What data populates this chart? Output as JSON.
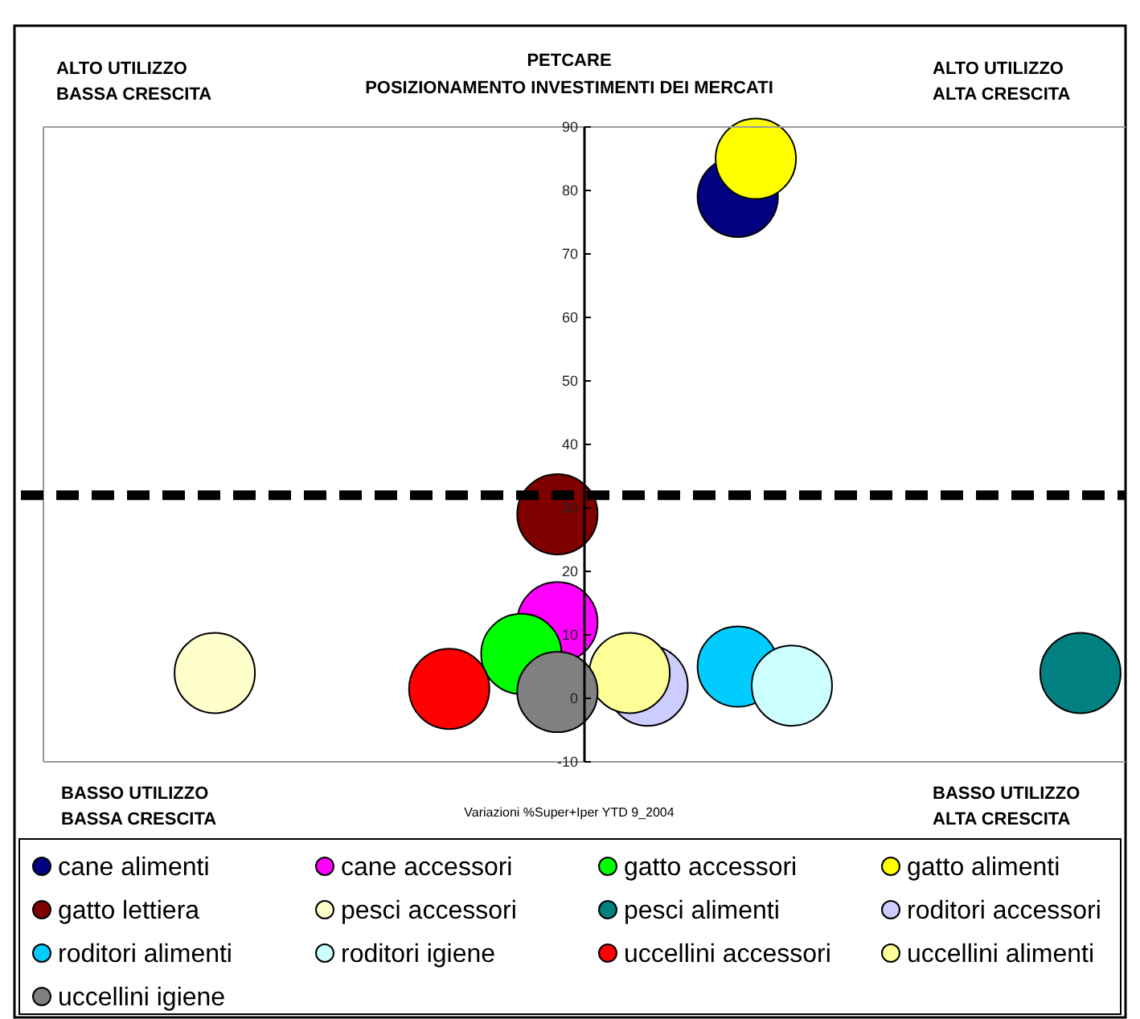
{
  "chart_data": {
    "type": "bubble",
    "title": "PETCARE",
    "subtitle": "POSIZIONAMENTO INVESTIMENTI DEI MERCATI",
    "annotations": [
      "ALTO UTILIZZO\nBASSA CRESCITA",
      "ALTO UTILIZZO\nALTA CRESCITA",
      "BASSO UTILIZZO\nBASSA CRESCITA",
      "BASSO UTILIZZO\nALTA CRESCITA",
      "Variazioni %Super+Iper YTD 9_2004"
    ],
    "categories": [
      null,
      null,
      null,
      null,
      null,
      null,
      null,
      null,
      null,
      null,
      null,
      null,
      null,
      null,
      null,
      null,
      null,
      null,
      null,
      null,
      null,
      null,
      null,
      null,
      null,
      null,
      null,
      null,
      null,
      null,
      null,
      null,
      null,
      null,
      null,
      null,
      null,
      null,
      null,
      null,
      null,
      null,
      null,
      null,
      null,
      null,
      null,
      null,
      null,
      null,
      null,
      null,
      null,
      null,
      null,
      null,
      null,
      null,
      null,
      null
    ],
    "ylim": [
      -10,
      90
    ],
    "yticks": [
      -10,
      0,
      10,
      20,
      30,
      40,
      50,
      60,
      70,
      80,
      90
    ],
    "tick_labels": "y",
    "legend": "bottom",
    "ref_lines": [
      {
        "axis": "y",
        "value": 32,
        "color": "#000000",
        "line_style": "dashed"
      }
    ],
    "series": [
      {
        "name": "cane alimenti",
        "color": "#000080",
        "values": [
          null,
          null,
          null,
          null,
          null,
          null,
          null,
          null,
          null,
          null,
          null,
          null,
          null,
          null,
          null,
          null,
          null,
          null,
          null,
          null,
          null,
          null,
          null,
          null,
          null,
          null,
          null,
          null,
          null,
          null,
          null,
          null,
          null,
          null,
          null,
          null,
          null,
          null,
          79,
          null,
          null,
          null,
          null,
          null,
          null,
          null,
          null,
          null,
          null,
          null,
          null,
          null,
          null,
          null,
          null,
          null,
          null,
          null,
          null,
          null
        ],
        "sizes": [
          null,
          null,
          null,
          null,
          null,
          null,
          null,
          null,
          null,
          null,
          null,
          null,
          null,
          null,
          null,
          null,
          null,
          null,
          null,
          null,
          null,
          null,
          null,
          null,
          null,
          null,
          null,
          null,
          null,
          null,
          null,
          null,
          null,
          null,
          null,
          null,
          null,
          null,
          1,
          null,
          null,
          null,
          null,
          null,
          null,
          null,
          null,
          null,
          null,
          null,
          null,
          null,
          null,
          null,
          null,
          null,
          null,
          null,
          null,
          null
        ]
      },
      {
        "name": "cane accessori",
        "color": "#ff00ff",
        "values": [
          null,
          null,
          null,
          null,
          null,
          null,
          null,
          null,
          null,
          null,
          null,
          null,
          null,
          null,
          null,
          null,
          null,
          null,
          null,
          null,
          null,
          null,
          null,
          null,
          null,
          null,
          null,
          null,
          12,
          null,
          null,
          null,
          null,
          null,
          null,
          null,
          null,
          null,
          null,
          null,
          null,
          null,
          null,
          null,
          null,
          null,
          null,
          null,
          null,
          null,
          null,
          null,
          null,
          null,
          null,
          null,
          null,
          null,
          null,
          null
        ],
        "sizes": [
          null,
          null,
          null,
          null,
          null,
          null,
          null,
          null,
          null,
          null,
          null,
          null,
          null,
          null,
          null,
          null,
          null,
          null,
          null,
          null,
          null,
          null,
          null,
          null,
          null,
          null,
          null,
          null,
          1,
          null,
          null,
          null,
          null,
          null,
          null,
          null,
          null,
          null,
          null,
          null,
          null,
          null,
          null,
          null,
          null,
          null,
          null,
          null,
          null,
          null,
          null,
          null,
          null,
          null,
          null,
          null,
          null,
          null,
          null,
          null
        ]
      },
      {
        "name": "gatto accessori",
        "color": "#00ff00",
        "values": [
          null,
          null,
          null,
          null,
          null,
          null,
          null,
          null,
          null,
          null,
          null,
          null,
          null,
          null,
          null,
          null,
          null,
          null,
          null,
          null,
          null,
          null,
          null,
          null,
          null,
          null,
          7,
          null,
          null,
          null,
          null,
          null,
          null,
          null,
          null,
          null,
          null,
          null,
          null,
          null,
          null,
          null,
          null,
          null,
          null,
          null,
          null,
          null,
          null,
          null,
          null,
          null,
          null,
          null,
          null,
          null,
          null,
          null,
          null,
          null
        ],
        "sizes": [
          null,
          null,
          null,
          null,
          null,
          null,
          null,
          null,
          null,
          null,
          null,
          null,
          null,
          null,
          null,
          null,
          null,
          null,
          null,
          null,
          null,
          null,
          null,
          null,
          null,
          null,
          1,
          null,
          null,
          null,
          null,
          null,
          null,
          null,
          null,
          null,
          null,
          null,
          null,
          null,
          null,
          null,
          null,
          null,
          null,
          null,
          null,
          null,
          null,
          null,
          null,
          null,
          null,
          null,
          null,
          null,
          null,
          null,
          null,
          null
        ]
      },
      {
        "name": "gatto alimenti",
        "color": "#ffff00",
        "values": [
          null,
          null,
          null,
          null,
          null,
          null,
          null,
          null,
          null,
          null,
          null,
          null,
          null,
          null,
          null,
          null,
          null,
          null,
          null,
          null,
          null,
          null,
          null,
          null,
          null,
          null,
          null,
          null,
          null,
          null,
          null,
          null,
          null,
          null,
          null,
          null,
          null,
          null,
          null,
          85,
          null,
          null,
          null,
          null,
          null,
          null,
          null,
          null,
          null,
          null,
          null,
          null,
          null,
          null,
          null,
          null,
          null,
          null,
          null,
          null
        ],
        "sizes": [
          null,
          null,
          null,
          null,
          null,
          null,
          null,
          null,
          null,
          null,
          null,
          null,
          null,
          null,
          null,
          null,
          null,
          null,
          null,
          null,
          null,
          null,
          null,
          null,
          null,
          null,
          null,
          null,
          null,
          null,
          null,
          null,
          null,
          null,
          null,
          null,
          null,
          null,
          null,
          1,
          null,
          null,
          null,
          null,
          null,
          null,
          null,
          null,
          null,
          null,
          null,
          null,
          null,
          null,
          null,
          null,
          null,
          null,
          null,
          null
        ]
      },
      {
        "name": "gatto lettiera",
        "color": "#800000",
        "values": [
          null,
          null,
          null,
          null,
          null,
          null,
          null,
          null,
          null,
          null,
          null,
          null,
          null,
          null,
          null,
          null,
          null,
          null,
          null,
          null,
          null,
          null,
          null,
          null,
          null,
          null,
          null,
          null,
          29,
          null,
          null,
          null,
          null,
          null,
          null,
          null,
          null,
          null,
          null,
          null,
          null,
          null,
          null,
          null,
          null,
          null,
          null,
          null,
          null,
          null,
          null,
          null,
          null,
          null,
          null,
          null,
          null,
          null,
          null,
          null
        ],
        "sizes": [
          null,
          null,
          null,
          null,
          null,
          null,
          null,
          null,
          null,
          null,
          null,
          null,
          null,
          null,
          null,
          null,
          null,
          null,
          null,
          null,
          null,
          null,
          null,
          null,
          null,
          null,
          null,
          null,
          1,
          null,
          null,
          null,
          null,
          null,
          null,
          null,
          null,
          null,
          null,
          null,
          null,
          null,
          null,
          null,
          null,
          null,
          null,
          null,
          null,
          null,
          null,
          null,
          null,
          null,
          null,
          null,
          null,
          null,
          null,
          null
        ]
      },
      {
        "name": "pesci accessori",
        "color": "#ffffcc",
        "values": [
          null,
          null,
          null,
          null,
          null,
          null,
          null,
          null,
          null,
          4,
          null,
          null,
          null,
          null,
          null,
          null,
          null,
          null,
          null,
          null,
          null,
          null,
          null,
          null,
          null,
          null,
          null,
          null,
          null,
          null,
          null,
          null,
          null,
          null,
          null,
          null,
          null,
          null,
          null,
          null,
          null,
          null,
          null,
          null,
          null,
          null,
          null,
          null,
          null,
          null,
          null,
          null,
          null,
          null,
          null,
          null,
          null,
          null,
          null,
          null
        ],
        "sizes": [
          null,
          null,
          null,
          null,
          null,
          null,
          null,
          null,
          null,
          1,
          null,
          null,
          null,
          null,
          null,
          null,
          null,
          null,
          null,
          null,
          null,
          null,
          null,
          null,
          null,
          null,
          null,
          null,
          null,
          null,
          null,
          null,
          null,
          null,
          null,
          null,
          null,
          null,
          null,
          null,
          null,
          null,
          null,
          null,
          null,
          null,
          null,
          null,
          null,
          null,
          null,
          null,
          null,
          null,
          null,
          null,
          null,
          null,
          null,
          null
        ]
      },
      {
        "name": "pesci alimenti",
        "color": "#008080",
        "values": [
          null,
          null,
          null,
          null,
          null,
          null,
          null,
          null,
          null,
          null,
          null,
          null,
          null,
          null,
          null,
          null,
          null,
          null,
          null,
          null,
          null,
          null,
          null,
          null,
          null,
          null,
          null,
          null,
          null,
          null,
          null,
          null,
          null,
          null,
          null,
          null,
          null,
          null,
          null,
          null,
          null,
          null,
          null,
          null,
          null,
          null,
          null,
          null,
          null,
          null,
          null,
          null,
          null,
          null,
          null,
          null,
          null,
          4,
          null,
          null
        ],
        "sizes": [
          null,
          null,
          null,
          null,
          null,
          null,
          null,
          null,
          null,
          null,
          null,
          null,
          null,
          null,
          null,
          null,
          null,
          null,
          null,
          null,
          null,
          null,
          null,
          null,
          null,
          null,
          null,
          null,
          null,
          null,
          null,
          null,
          null,
          null,
          null,
          null,
          null,
          null,
          null,
          null,
          null,
          null,
          null,
          null,
          null,
          null,
          null,
          null,
          null,
          null,
          null,
          null,
          null,
          null,
          null,
          null,
          null,
          1,
          null,
          null
        ]
      },
      {
        "name": "roditori accessori",
        "color": "#ccccff",
        "values": [
          null,
          null,
          null,
          null,
          null,
          null,
          null,
          null,
          null,
          null,
          null,
          null,
          null,
          null,
          null,
          null,
          null,
          null,
          null,
          null,
          null,
          null,
          null,
          null,
          null,
          null,
          null,
          null,
          null,
          null,
          null,
          null,
          null,
          2,
          null,
          null,
          null,
          null,
          null,
          null,
          null,
          null,
          null,
          null,
          null,
          null,
          null,
          null,
          null,
          null,
          null,
          null,
          null,
          null,
          null,
          null,
          null,
          null,
          null,
          null
        ],
        "sizes": [
          null,
          null,
          null,
          null,
          null,
          null,
          null,
          null,
          null,
          null,
          null,
          null,
          null,
          null,
          null,
          null,
          null,
          null,
          null,
          null,
          null,
          null,
          null,
          null,
          null,
          null,
          null,
          null,
          null,
          null,
          null,
          null,
          null,
          1,
          null,
          null,
          null,
          null,
          null,
          null,
          null,
          null,
          null,
          null,
          null,
          null,
          null,
          null,
          null,
          null,
          null,
          null,
          null,
          null,
          null,
          null,
          null,
          null,
          null,
          null
        ]
      },
      {
        "name": "roditori alimenti",
        "color": "#00ccff",
        "values": [
          null,
          null,
          null,
          null,
          null,
          null,
          null,
          null,
          null,
          null,
          null,
          null,
          null,
          null,
          null,
          null,
          null,
          null,
          null,
          null,
          null,
          null,
          null,
          null,
          null,
          null,
          null,
          null,
          null,
          null,
          null,
          null,
          null,
          null,
          null,
          null,
          null,
          null,
          5,
          null,
          null,
          null,
          null,
          null,
          null,
          null,
          null,
          null,
          null,
          null,
          null,
          null,
          null,
          null,
          null,
          null,
          null,
          null,
          null,
          null
        ],
        "sizes": [
          null,
          null,
          null,
          null,
          null,
          null,
          null,
          null,
          null,
          null,
          null,
          null,
          null,
          null,
          null,
          null,
          null,
          null,
          null,
          null,
          null,
          null,
          null,
          null,
          null,
          null,
          null,
          null,
          null,
          null,
          null,
          null,
          null,
          null,
          null,
          null,
          null,
          null,
          1,
          null,
          null,
          null,
          null,
          null,
          null,
          null,
          null,
          null,
          null,
          null,
          null,
          null,
          null,
          null,
          null,
          null,
          null,
          null,
          null,
          null
        ]
      },
      {
        "name": "roditori igiene",
        "color": "#ccffff",
        "values": [
          null,
          null,
          null,
          null,
          null,
          null,
          null,
          null,
          null,
          null,
          null,
          null,
          null,
          null,
          null,
          null,
          null,
          null,
          null,
          null,
          null,
          null,
          null,
          null,
          null,
          null,
          null,
          null,
          null,
          null,
          null,
          null,
          null,
          null,
          null,
          null,
          null,
          null,
          null,
          null,
          null,
          2,
          null,
          null,
          null,
          null,
          null,
          null,
          null,
          null,
          null,
          null,
          null,
          null,
          null,
          null,
          null,
          null,
          null,
          null
        ],
        "sizes": [
          null,
          null,
          null,
          null,
          null,
          null,
          null,
          null,
          null,
          null,
          null,
          null,
          null,
          null,
          null,
          null,
          null,
          null,
          null,
          null,
          null,
          null,
          null,
          null,
          null,
          null,
          null,
          null,
          null,
          null,
          null,
          null,
          null,
          null,
          null,
          null,
          null,
          null,
          null,
          null,
          null,
          1,
          null,
          null,
          null,
          null,
          null,
          null,
          null,
          null,
          null,
          null,
          null,
          null,
          null,
          null,
          null,
          null,
          null,
          null
        ]
      },
      {
        "name": "uccellini accessori",
        "color": "#ff0000",
        "values": [
          null,
          null,
          null,
          null,
          null,
          null,
          null,
          null,
          null,
          null,
          null,
          null,
          null,
          null,
          null,
          null,
          null,
          null,
          null,
          null,
          null,
          null,
          1.5,
          null,
          null,
          null,
          null,
          null,
          null,
          null,
          null,
          null,
          null,
          null,
          null,
          null,
          null,
          null,
          null,
          null,
          null,
          null,
          null,
          null,
          null,
          null,
          null,
          null,
          null,
          null,
          null,
          null,
          null,
          null,
          null,
          null,
          null,
          null,
          null,
          null
        ],
        "sizes": [
          null,
          null,
          null,
          null,
          null,
          null,
          null,
          null,
          null,
          null,
          null,
          null,
          null,
          null,
          null,
          null,
          null,
          null,
          null,
          null,
          null,
          null,
          1,
          null,
          null,
          null,
          null,
          null,
          null,
          null,
          null,
          null,
          null,
          null,
          null,
          null,
          null,
          null,
          null,
          null,
          null,
          null,
          null,
          null,
          null,
          null,
          null,
          null,
          null,
          null,
          null,
          null,
          null,
          null,
          null,
          null,
          null,
          null,
          null,
          null
        ]
      },
      {
        "name": "uccellini alimenti",
        "color": "#ffff99",
        "values": [
          null,
          null,
          null,
          null,
          null,
          null,
          null,
          null,
          null,
          null,
          null,
          null,
          null,
          null,
          null,
          null,
          null,
          null,
          null,
          null,
          null,
          null,
          null,
          null,
          null,
          null,
          null,
          null,
          null,
          null,
          null,
          null,
          4,
          null,
          null,
          null,
          null,
          null,
          null,
          null,
          null,
          null,
          null,
          null,
          null,
          null,
          null,
          null,
          null,
          null,
          null,
          null,
          null,
          null,
          null,
          null,
          null,
          null,
          null,
          null
        ],
        "sizes": [
          null,
          null,
          null,
          null,
          null,
          null,
          null,
          null,
          null,
          null,
          null,
          null,
          null,
          null,
          null,
          null,
          null,
          null,
          null,
          null,
          null,
          null,
          null,
          null,
          null,
          null,
          null,
          null,
          null,
          null,
          null,
          null,
          1,
          null,
          null,
          null,
          null,
          null,
          null,
          null,
          null,
          null,
          null,
          null,
          null,
          null,
          null,
          null,
          null,
          null,
          null,
          null,
          null,
          null,
          null,
          null,
          null,
          null,
          null,
          null
        ]
      },
      {
        "name": "uccellini igiene",
        "color": "#808080",
        "values": [
          null,
          null,
          null,
          null,
          null,
          null,
          null,
          null,
          null,
          null,
          null,
          null,
          null,
          null,
          null,
          null,
          null,
          null,
          null,
          null,
          null,
          null,
          null,
          null,
          null,
          null,
          null,
          null,
          1,
          null,
          null,
          null,
          null,
          null,
          null,
          null,
          null,
          null,
          null,
          null,
          null,
          null,
          null,
          null,
          null,
          null,
          null,
          null,
          null,
          null,
          null,
          null,
          null,
          null,
          null,
          null,
          null,
          null,
          null,
          null
        ],
        "sizes": [
          null,
          null,
          null,
          null,
          null,
          null,
          null,
          null,
          null,
          null,
          null,
          null,
          null,
          null,
          null,
          null,
          null,
          null,
          null,
          null,
          null,
          null,
          null,
          null,
          null,
          null,
          null,
          null,
          1,
          null,
          null,
          null,
          null,
          null,
          null,
          null,
          null,
          null,
          null,
          null,
          null,
          null,
          null,
          null,
          null,
          null,
          null,
          null,
          null,
          null,
          null,
          null,
          null,
          null,
          null,
          null,
          null,
          null,
          null,
          null
        ]
      }
    ]
  }
}
